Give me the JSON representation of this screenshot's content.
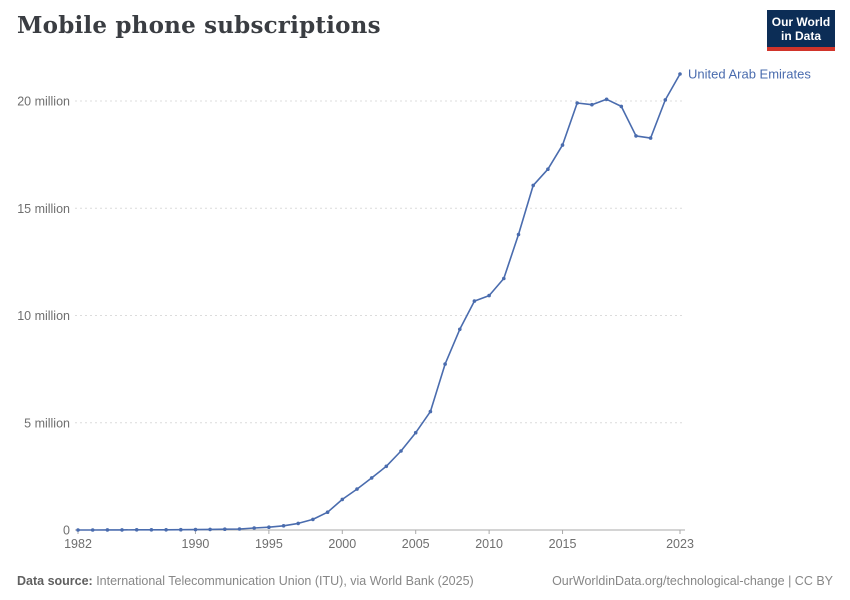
{
  "header": {
    "title": "Mobile phone subscriptions",
    "logo": {
      "line1": "Our World",
      "line2": "in Data"
    }
  },
  "colors": {
    "series_blue": "#4a6cae",
    "grid": "#dcdcdc",
    "axis": "#a9a9a9",
    "tick_label": "#6f6f6f",
    "title_text": "#3a3d42",
    "logo_bg": "#0c2d56",
    "logo_accent": "#d1342a"
  },
  "chart_data": {
    "type": "line",
    "title": "Mobile phone subscriptions",
    "unit": "million",
    "grid": "horizontal-dashed",
    "legend_position": "end-of-line-label",
    "x": [
      1982,
      1983,
      1984,
      1985,
      1986,
      1987,
      1988,
      1989,
      1990,
      1991,
      1992,
      1993,
      1994,
      1995,
      1996,
      1997,
      1998,
      1999,
      2000,
      2001,
      2002,
      2003,
      2004,
      2005,
      2006,
      2007,
      2008,
      2009,
      2010,
      2011,
      2012,
      2013,
      2014,
      2015,
      2016,
      2017,
      2018,
      2019,
      2020,
      2021,
      2022,
      2023
    ],
    "series": [
      {
        "name": "United Arab Emirates",
        "color": "#4a6cae",
        "values_millions": [
          0.0003,
          0.001,
          0.003,
          0.005,
          0.007,
          0.009,
          0.011,
          0.015,
          0.02,
          0.028,
          0.035,
          0.047,
          0.091,
          0.129,
          0.194,
          0.31,
          0.493,
          0.832,
          1.428,
          1.909,
          2.428,
          2.972,
          3.683,
          4.534,
          5.519,
          7.732,
          9.358,
          10.672,
          10.926,
          11.727,
          13.775,
          16.063,
          16.819,
          17.943,
          19.905,
          19.826,
          20.079,
          19.749,
          18.374,
          18.269,
          20.05,
          21.26
        ]
      }
    ],
    "ylim_millions": [
      0,
      21.5
    ],
    "yticks_millions": [
      0,
      5,
      10,
      15,
      20
    ],
    "ytick_labels": [
      "0",
      "5 million",
      "10 million",
      "15 million",
      "20 million"
    ],
    "xticks": [
      1982,
      1990,
      1995,
      2000,
      2005,
      2010,
      2015,
      2023
    ]
  },
  "footer": {
    "source_label": "Data source:",
    "source_text": " International Telecommunication Union (ITU), via World Bank (2025)",
    "link": "OurWorldinData.org/technological-change | CC BY"
  }
}
